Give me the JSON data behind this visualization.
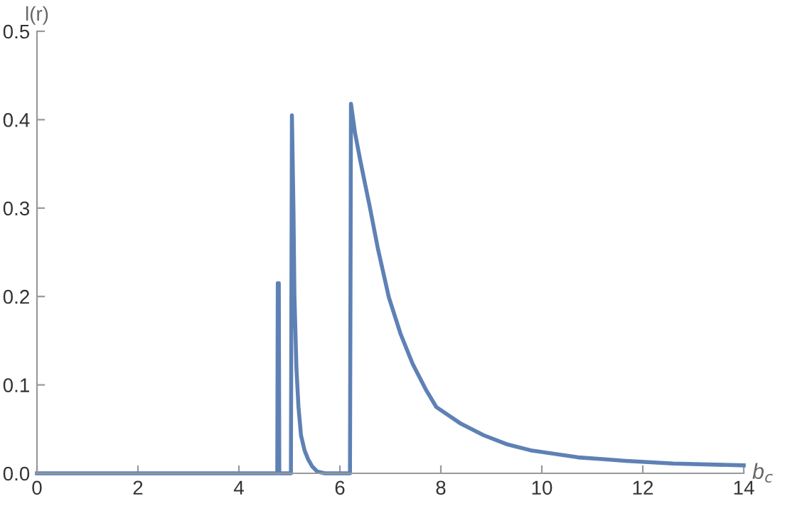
{
  "chart_data": {
    "type": "line",
    "xlabel": "b$_{c}$",
    "ylabel": "l(r)",
    "series": [
      {
        "color": "#5e81b5",
        "x": [
          0,
          4.76,
          4.77,
          4.79,
          4.8,
          5.03,
          5.05,
          5.08,
          5.1,
          5.14,
          5.18,
          5.23,
          5.3,
          5.37,
          5.45,
          5.55,
          5.7,
          6.2,
          6.22,
          6.3,
          6.4,
          6.5,
          6.59,
          6.75,
          6.97,
          7.2,
          7.44,
          7.7,
          7.91,
          8.4,
          8.85,
          9.3,
          9.78,
          10.72,
          11.2,
          11.66,
          12.6,
          14
        ],
        "values": [
          0,
          0,
          0.215,
          0.215,
          0,
          0,
          0.405,
          0.3,
          0.2,
          0.118,
          0.075,
          0.043,
          0.026,
          0.016,
          0.008,
          0.002,
          0,
          0,
          0.418,
          0.385,
          0.355,
          0.327,
          0.302,
          0.255,
          0.199,
          0.158,
          0.124,
          0.095,
          0.075,
          0.056,
          0.043,
          0.033,
          0.026,
          0.018,
          0.016,
          0.014,
          0.011,
          0.009
        ]
      }
    ],
    "xlim": [
      0,
      14
    ],
    "ylim": [
      0,
      0.5
    ],
    "xticks": [
      0,
      2,
      4,
      6,
      8,
      10,
      12,
      14
    ],
    "yticks": [
      {
        "value": 0,
        "label": "0.0"
      },
      0.1,
      0.2,
      0.3,
      0.4,
      0.5
    ],
    "grid": false,
    "legend": false,
    "marker": "none",
    "line_style": "solid"
  }
}
